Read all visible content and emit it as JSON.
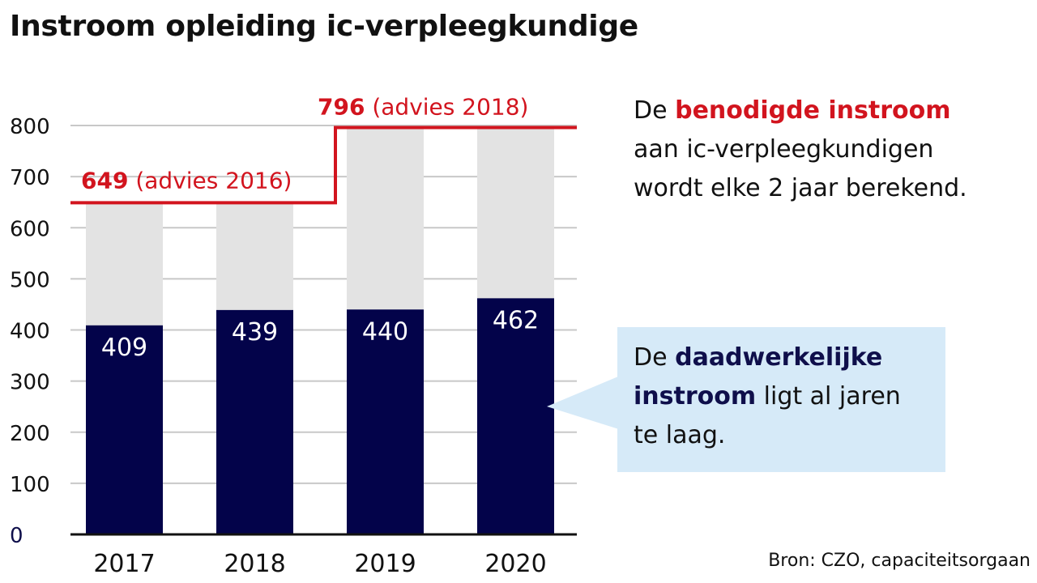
{
  "title": "Instroom opleiding ic-verpleegkundige",
  "colors": {
    "actual_bar": "#03034a",
    "required_bar": "#e3e3e3",
    "advice_line": "#d2141e",
    "callout_bg": "#d6eaf8",
    "gridline": "#c8c8c8"
  },
  "chart_data": {
    "type": "bar",
    "title": "Instroom opleiding ic-verpleegkundige",
    "categories": [
      "2017",
      "2018",
      "2019",
      "2020"
    ],
    "series": [
      {
        "name": "daadwerkelijke instroom",
        "values": [
          409,
          439,
          440,
          462
        ]
      },
      {
        "name": "benodigde instroom",
        "values": [
          649,
          649,
          796,
          796
        ]
      }
    ],
    "y_ticks": [
      0,
      100,
      200,
      300,
      400,
      500,
      600,
      700,
      800
    ],
    "ylim": [
      0,
      800
    ],
    "grid": true,
    "advice_labels": [
      {
        "value": "649",
        "text": "(advies 2016)"
      },
      {
        "value": "796",
        "text": "(advies 2018)"
      }
    ]
  },
  "notes": {
    "required": {
      "line1_prefix": "De ",
      "line1_highlight": "benodigde instroom",
      "line2": "aan ic-verpleegkundigen",
      "line3": "wordt elke 2 jaar berekend."
    },
    "actual": {
      "line1_prefix": "De ",
      "line1_highlight": "daadwerkelijke",
      "line2_highlight": "instroom",
      "line2_suffix": " ligt al jaren",
      "line3": "te laag."
    }
  },
  "source": "Bron: CZO, capaciteitsorgaan"
}
